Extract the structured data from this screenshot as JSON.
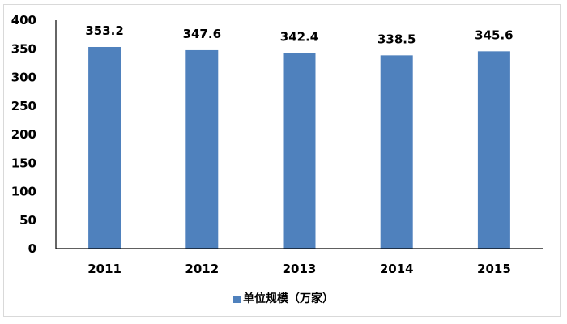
{
  "chart_data": {
    "type": "bar",
    "categories": [
      "2011",
      "2012",
      "2013",
      "2014",
      "2015"
    ],
    "series": [
      {
        "name": "单位规模（万家）",
        "values": [
          353.2,
          347.6,
          342.4,
          338.5,
          345.6
        ],
        "color": "#4f81bd"
      }
    ],
    "ylim": [
      0,
      400
    ],
    "yticks": [
      0,
      50,
      100,
      150,
      200,
      250,
      300,
      350,
      400
    ],
    "grid": false,
    "legend_position": "bottom",
    "data_labels": [
      "353.2",
      "347.6",
      "342.4",
      "338.5",
      "345.6"
    ]
  }
}
